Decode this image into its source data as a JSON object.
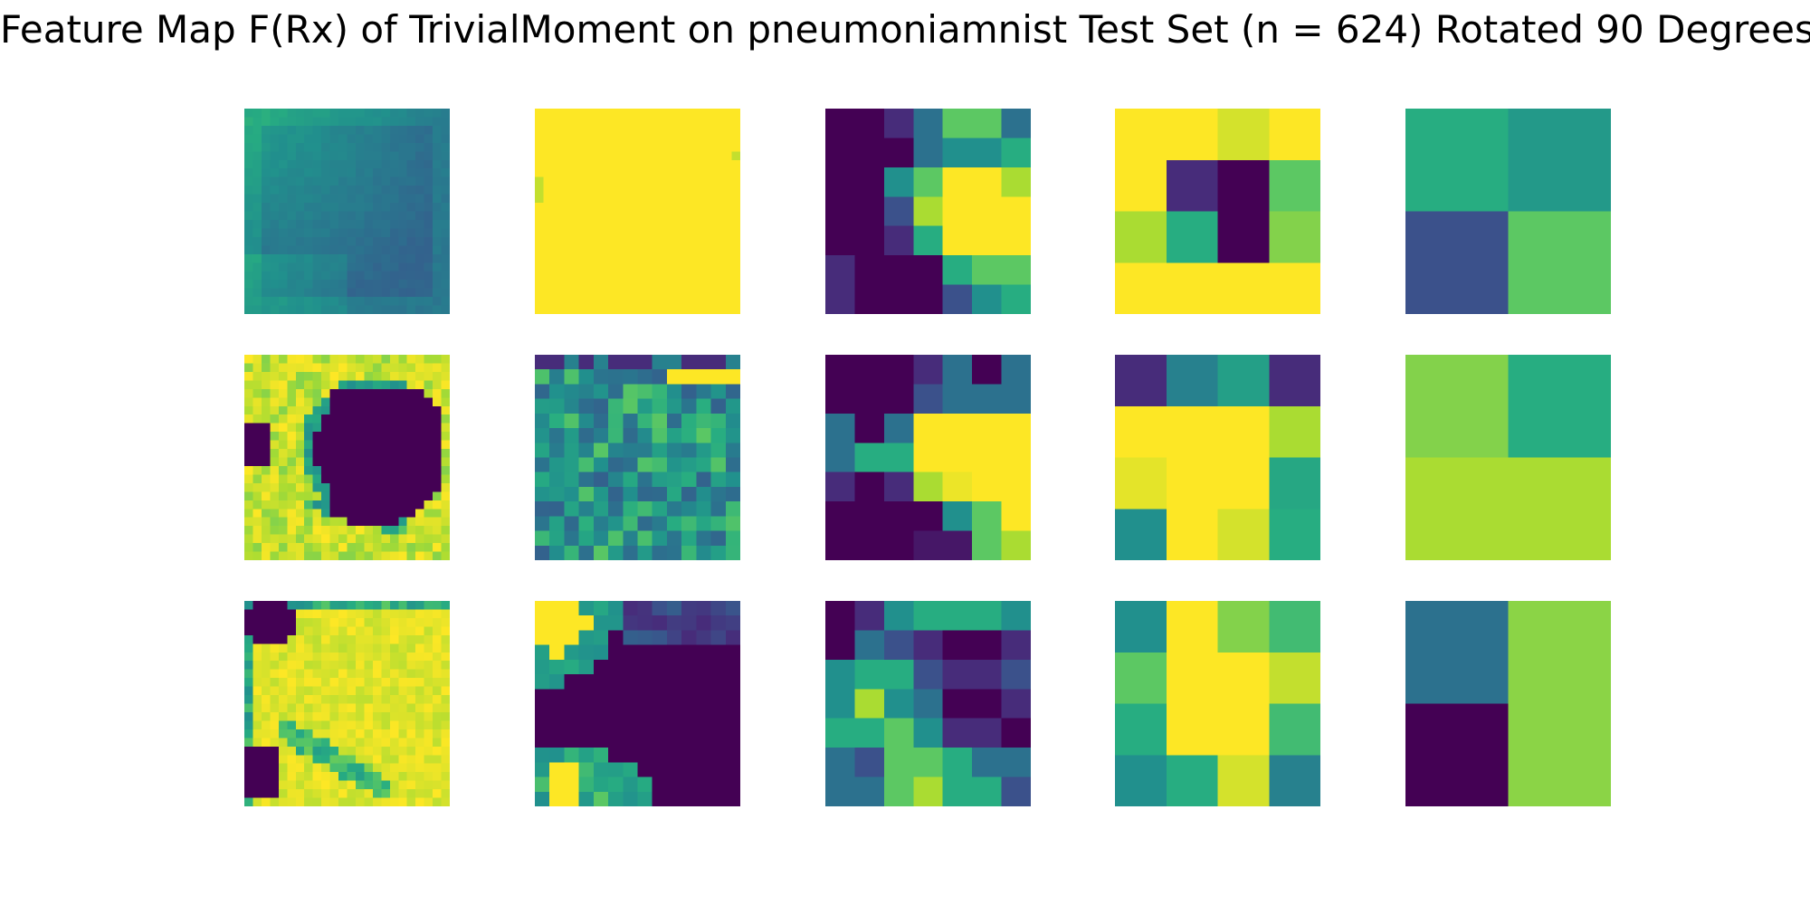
{
  "title": "Feature Map F(Rx) of TrivialMoment on pneumoniamnist Test Set (n = 624) Rotated 90 Degrees",
  "colors": {
    "v0": "#440154",
    "v1": "#472c7a",
    "v2": "#3b518b",
    "v3": "#2c718e",
    "v4": "#21908d",
    "v5": "#27ad81",
    "v6": "#5cc863",
    "v7": "#aadc32",
    "v8": "#fde725"
  },
  "chart_data": {
    "type": "heatmap",
    "colormap": "viridis",
    "rows": 3,
    "cols": 5,
    "grid": false,
    "axes_visible": false,
    "panels": [
      {
        "row": 0,
        "col": 0,
        "pattern": "diag",
        "n": 24,
        "base": 2.5,
        "hi": 4.5
      },
      {
        "row": 0,
        "col": 1,
        "pattern": "const",
        "n": 24,
        "base": 8
      },
      {
        "row": 0,
        "col": 2,
        "n": 7,
        "cells": [
          [
            0,
            0,
            1,
            3,
            6,
            6,
            3
          ],
          [
            0,
            0,
            0,
            3,
            4,
            4,
            5
          ],
          [
            0,
            0,
            4,
            6,
            8,
            8,
            7
          ],
          [
            0,
            0,
            2,
            7,
            8,
            8,
            8
          ],
          [
            0,
            0,
            1,
            5,
            8,
            8,
            8
          ],
          [
            1,
            0,
            0,
            0,
            5,
            6,
            6
          ],
          [
            1,
            0,
            0,
            0,
            2,
            4,
            5
          ]
        ]
      },
      {
        "row": 0,
        "col": 3,
        "n": 4,
        "cells": [
          [
            8,
            8,
            7.5,
            8
          ],
          [
            8,
            1,
            0,
            6
          ],
          [
            7,
            5,
            0,
            6.5
          ],
          [
            8,
            8,
            8,
            8
          ]
        ]
      },
      {
        "row": 0,
        "col": 4,
        "n": 2,
        "cells": [
          [
            5,
            4.3
          ],
          [
            2,
            6
          ]
        ]
      },
      {
        "row": 1,
        "col": 0,
        "pattern": "blob",
        "n": 24
      },
      {
        "row": 1,
        "col": 1,
        "pattern": "noise",
        "n": 14
      },
      {
        "row": 1,
        "col": 2,
        "n": 7,
        "cells": [
          [
            0,
            0,
            0,
            1,
            3,
            0,
            3
          ],
          [
            0,
            0,
            0,
            2,
            3,
            3,
            3
          ],
          [
            3,
            0,
            3,
            8,
            8,
            8,
            8
          ],
          [
            3,
            5,
            5,
            8,
            8,
            8,
            8
          ],
          [
            1,
            0,
            1,
            7,
            7.8,
            8,
            8
          ],
          [
            0,
            0,
            0,
            0,
            4,
            6,
            8
          ],
          [
            0,
            0,
            0,
            0.5,
            0.5,
            6,
            7
          ]
        ]
      },
      {
        "row": 1,
        "col": 3,
        "n": 4,
        "cells": [
          [
            1,
            3.5,
            4.5,
            1
          ],
          [
            8,
            8,
            8,
            7
          ],
          [
            7.7,
            8,
            8,
            4.8
          ],
          [
            4,
            8,
            7.5,
            5
          ]
        ]
      },
      {
        "row": 1,
        "col": 4,
        "n": 2,
        "cells": [
          [
            6.5,
            5
          ],
          [
            7,
            7
          ]
        ]
      },
      {
        "row": 2,
        "col": 0,
        "pattern": "blob2",
        "n": 24
      },
      {
        "row": 2,
        "col": 1,
        "pattern": "corners",
        "n": 14
      },
      {
        "row": 2,
        "col": 2,
        "n": 7,
        "cells": [
          [
            0,
            1,
            4,
            5,
            5,
            5,
            4
          ],
          [
            0,
            3,
            2,
            1,
            0,
            0,
            1
          ],
          [
            4,
            5,
            5,
            2,
            1,
            1,
            2
          ],
          [
            4,
            7,
            4,
            3,
            0,
            0,
            1
          ],
          [
            5,
            5,
            6,
            4,
            1,
            1,
            0
          ],
          [
            3,
            2,
            6,
            6,
            5,
            3,
            3
          ],
          [
            3,
            3,
            6,
            7,
            5,
            5,
            2
          ]
        ]
      },
      {
        "row": 2,
        "col": 3,
        "n": 4,
        "cells": [
          [
            4,
            8,
            6.5,
            5.5
          ],
          [
            6,
            8,
            8,
            7.3
          ],
          [
            5,
            8,
            8,
            5.5
          ],
          [
            4,
            5,
            7.5,
            3.5
          ]
        ]
      },
      {
        "row": 2,
        "col": 4,
        "n": 2,
        "cells": [
          [
            3,
            6.6
          ],
          [
            0,
            6.6
          ]
        ]
      }
    ]
  }
}
